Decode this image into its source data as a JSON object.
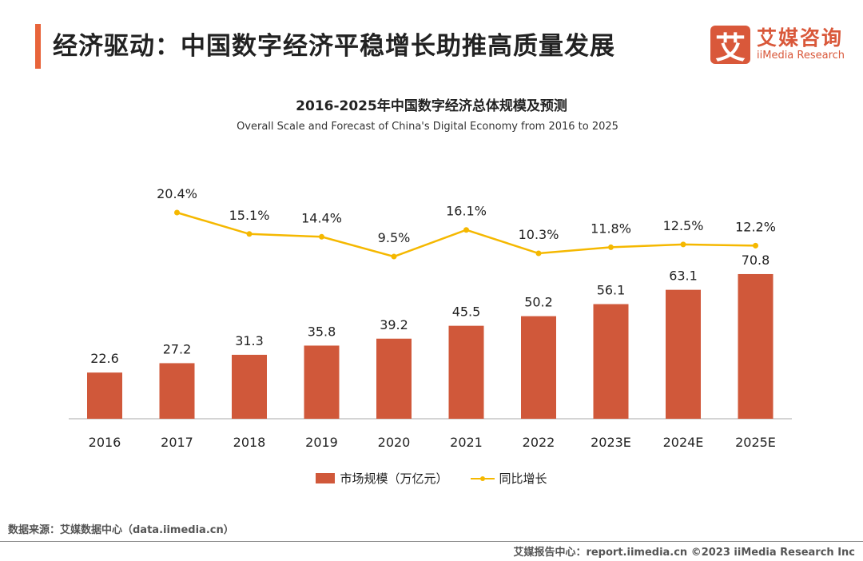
{
  "header": {
    "title": "经济驱动：中国数字经济平稳增长助推高质量发展",
    "logo_mark": "艾",
    "logo_cn": "艾媒咨询",
    "logo_en": "iiMedia Research",
    "accent": "#e8643a"
  },
  "chart_data": {
    "type": "bar+line",
    "title": "2016-2025年中国数字经济总体规模及预测",
    "subtitle": "Overall Scale and Forecast of China's Digital Economy from 2016 to 2025",
    "categories": [
      "2016",
      "2017",
      "2018",
      "2019",
      "2020",
      "2021",
      "2022",
      "2023E",
      "2024E",
      "2025E"
    ],
    "series": [
      {
        "name": "市场规模（万亿元）",
        "type": "bar",
        "color": "#d0583a",
        "values": [
          22.6,
          27.2,
          31.3,
          35.8,
          39.2,
          45.5,
          50.2,
          56.1,
          63.1,
          70.8
        ]
      },
      {
        "name": "同比增长",
        "type": "line",
        "color": "#f5b800",
        "values": [
          null,
          20.4,
          15.1,
          14.4,
          9.5,
          16.1,
          10.3,
          11.8,
          12.5,
          12.2
        ],
        "labels": [
          "",
          "20.4%",
          "15.1%",
          "14.4%",
          "9.5%",
          "16.1%",
          "10.3%",
          "11.8%",
          "12.5%",
          "12.2%"
        ]
      }
    ],
    "grid": false,
    "legend": "bottom"
  },
  "source": "数据来源：艾媒数据中心（data.iimedia.cn）",
  "footer": "艾媒报告中心：report.iimedia.cn   ©2023  iiMedia Research  Inc"
}
